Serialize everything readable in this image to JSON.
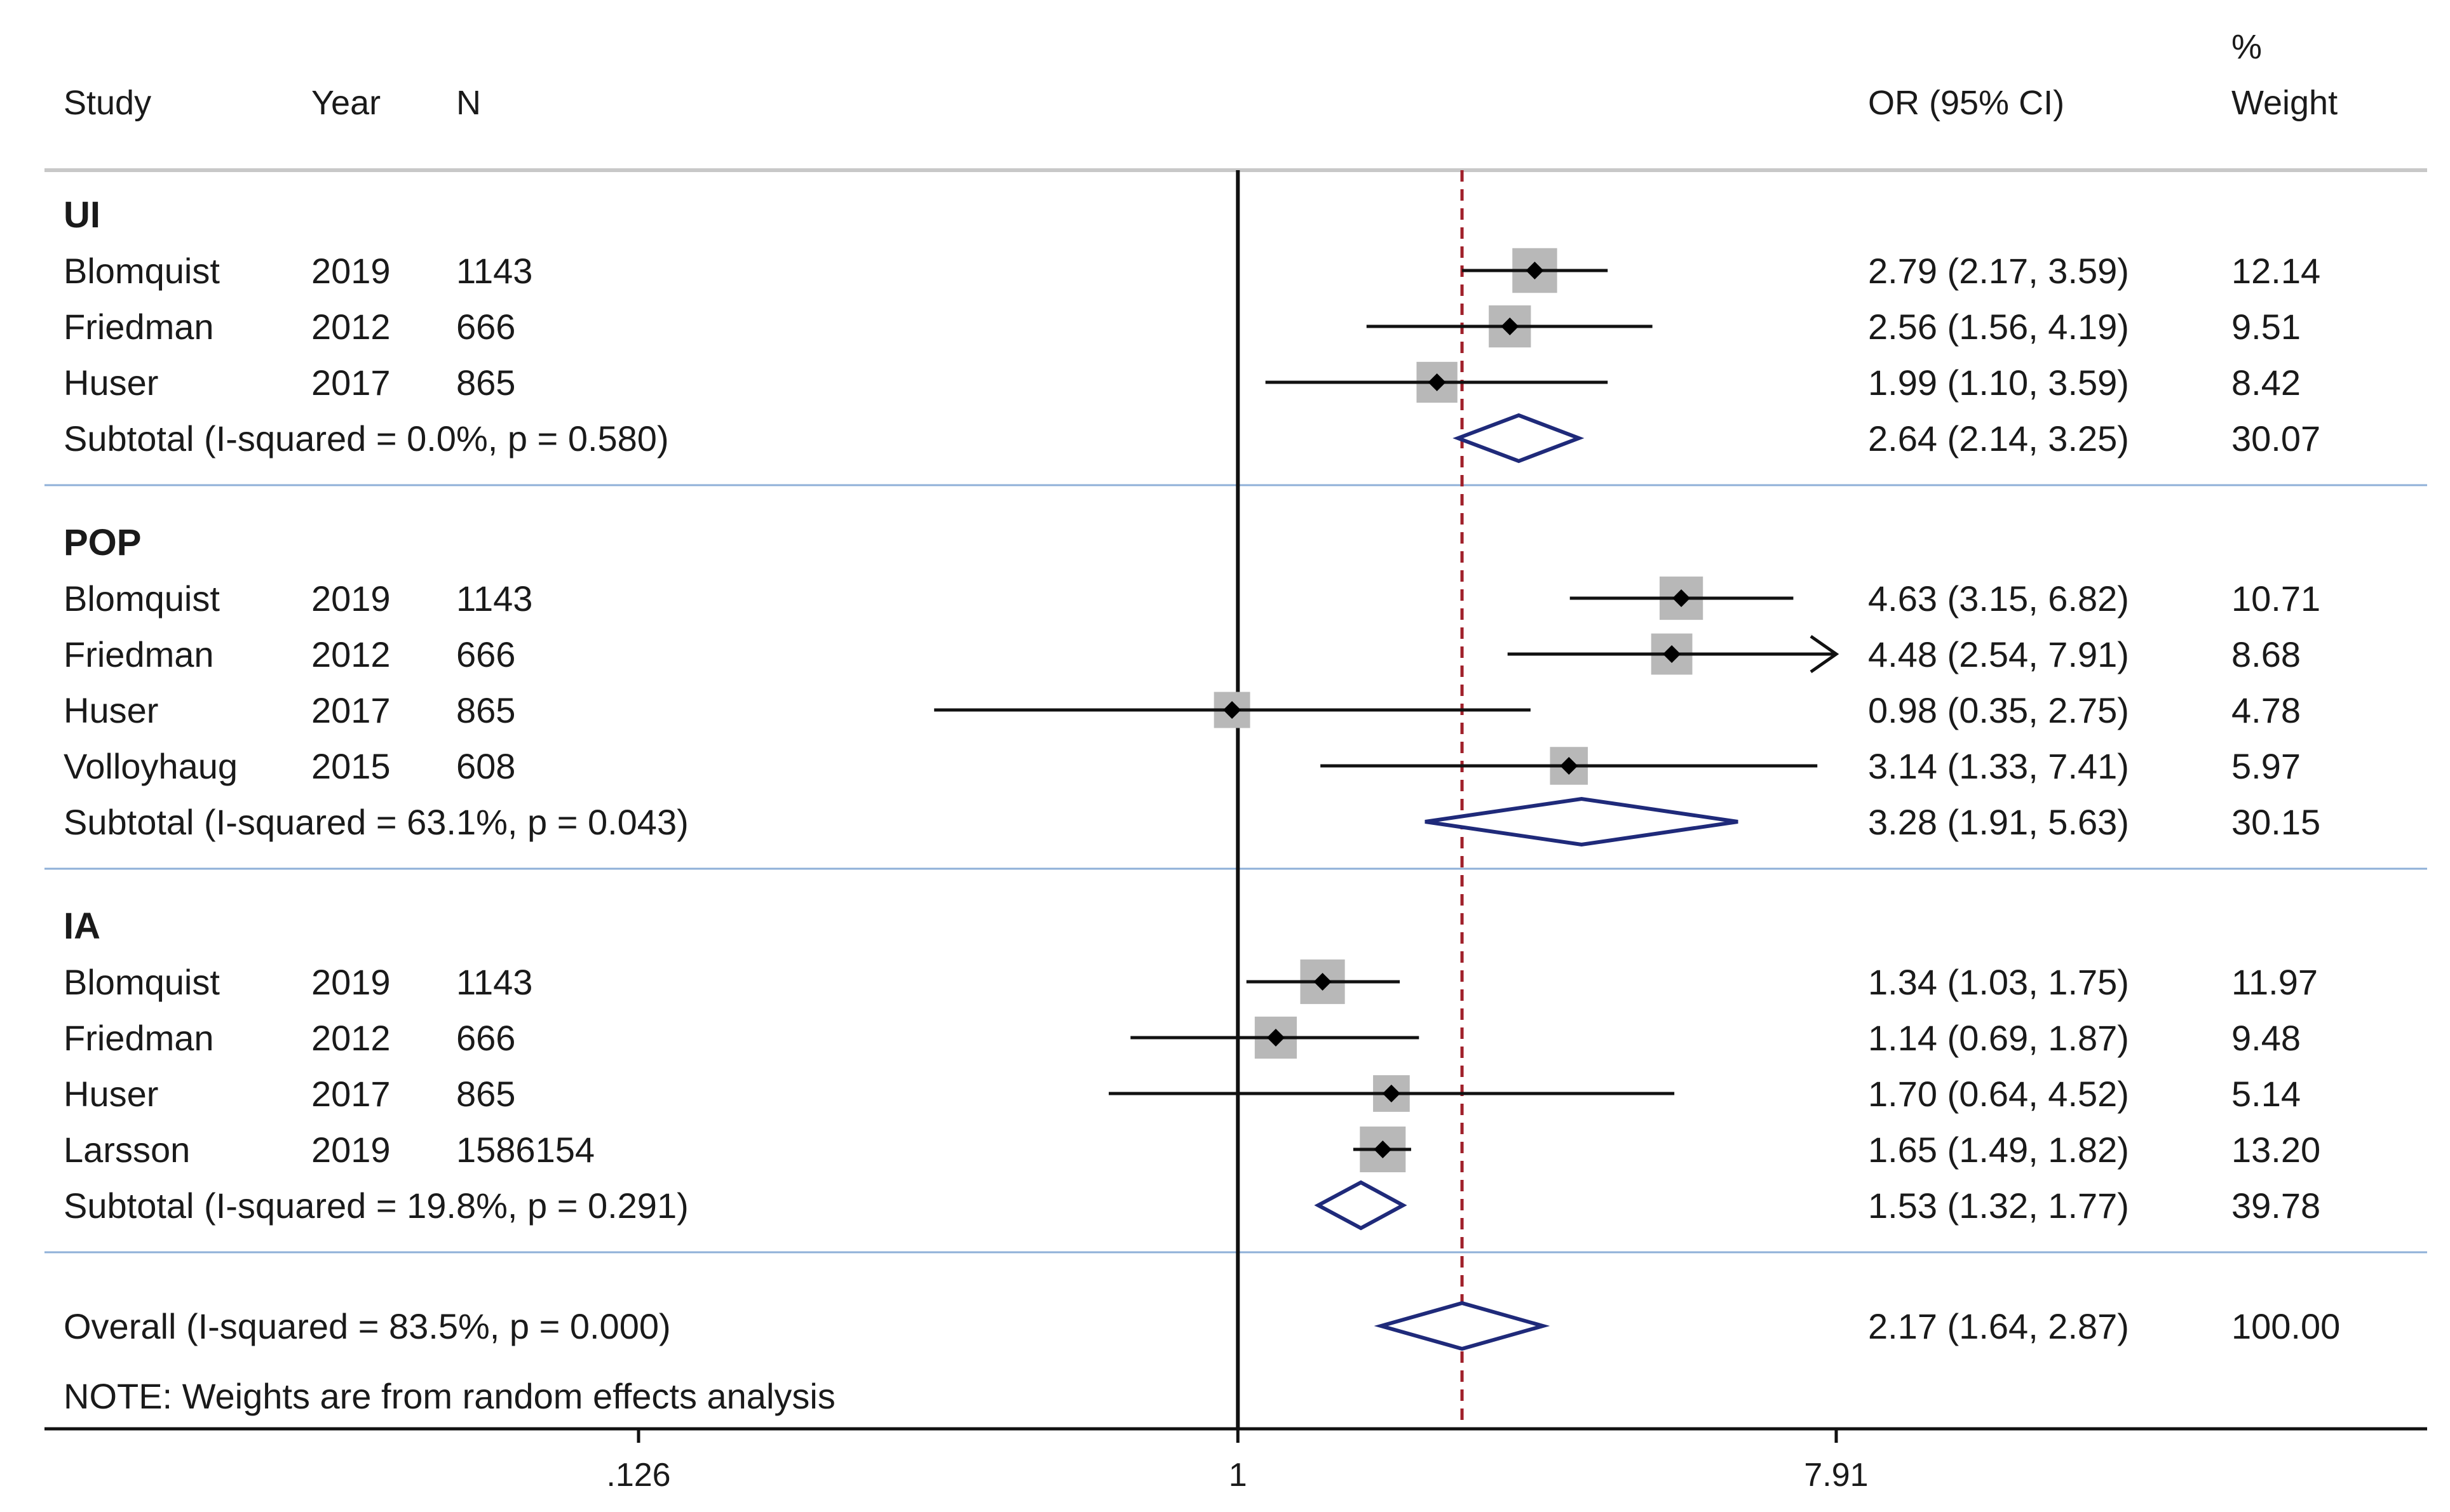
{
  "chart_data": {
    "type": "forest",
    "title": "",
    "xscale": "log",
    "xticks": [
      {
        "value": 0.126,
        "label": ".126"
      },
      {
        "value": 1,
        "label": "1"
      },
      {
        "value": 7.91,
        "label": "7.91"
      }
    ],
    "xlim": [
      0.126,
      7.91
    ],
    "null_line": 1,
    "overall_line": 2.17,
    "headers": {
      "study": "Study",
      "year": "Year",
      "n": "N",
      "or": "OR (95% CI)",
      "weight_top": "%",
      "weight": "Weight"
    },
    "groups": [
      {
        "name": "UI",
        "studies": [
          {
            "study": "Blomquist",
            "year": "2019",
            "n": "1143",
            "or": 2.79,
            "lo": 2.17,
            "hi": 3.59,
            "or_text": "2.79 (2.17, 3.59)",
            "weight": 12.14,
            "weight_text": "12.14"
          },
          {
            "study": "Friedman",
            "year": "2012",
            "n": "666",
            "or": 2.56,
            "lo": 1.56,
            "hi": 4.19,
            "or_text": "2.56 (1.56, 4.19)",
            "weight": 9.51,
            "weight_text": "9.51"
          },
          {
            "study": "Huser",
            "year": "2017",
            "n": "865",
            "or": 1.99,
            "lo": 1.1,
            "hi": 3.59,
            "or_text": "1.99 (1.10, 3.59)",
            "weight": 8.42,
            "weight_text": "8.42"
          }
        ],
        "subtotal": {
          "label": "Subtotal  (I-squared = 0.0%, p = 0.580)",
          "or": 2.64,
          "lo": 2.14,
          "hi": 3.25,
          "or_text": "2.64 (2.14, 3.25)",
          "weight_text": "30.07"
        }
      },
      {
        "name": "POP",
        "studies": [
          {
            "study": "Blomquist",
            "year": "2019",
            "n": "1143",
            "or": 4.63,
            "lo": 3.15,
            "hi": 6.82,
            "or_text": "4.63 (3.15, 6.82)",
            "weight": 10.71,
            "weight_text": "10.71"
          },
          {
            "study": "Friedman",
            "year": "2012",
            "n": "666",
            "or": 4.48,
            "lo": 2.54,
            "hi": 7.91,
            "or_text": "4.48 (2.54, 7.91)",
            "weight": 8.68,
            "weight_text": "8.68",
            "arrow": true
          },
          {
            "study": "Huser",
            "year": "2017",
            "n": "865",
            "or": 0.98,
            "lo": 0.35,
            "hi": 2.75,
            "or_text": "0.98 (0.35, 2.75)",
            "weight": 4.78,
            "weight_text": "4.78"
          },
          {
            "study": "Volloyhaug",
            "year": "2015",
            "n": "608",
            "or": 3.14,
            "lo": 1.33,
            "hi": 7.41,
            "or_text": "3.14 (1.33, 7.41)",
            "weight": 5.97,
            "weight_text": "5.97"
          }
        ],
        "subtotal": {
          "label": "Subtotal  (I-squared = 63.1%, p = 0.043)",
          "or": 3.28,
          "lo": 1.91,
          "hi": 5.63,
          "or_text": "3.28 (1.91, 5.63)",
          "weight_text": "30.15"
        }
      },
      {
        "name": "IA",
        "studies": [
          {
            "study": "Blomquist",
            "year": "2019",
            "n": "1143",
            "or": 1.34,
            "lo": 1.03,
            "hi": 1.75,
            "or_text": "1.34 (1.03, 1.75)",
            "weight": 11.97,
            "weight_text": "11.97"
          },
          {
            "study": "Friedman",
            "year": "2012",
            "n": "666",
            "or": 1.14,
            "lo": 0.69,
            "hi": 1.87,
            "or_text": "1.14 (0.69, 1.87)",
            "weight": 9.48,
            "weight_text": "9.48"
          },
          {
            "study": "Huser",
            "year": "2017",
            "n": "865",
            "or": 1.7,
            "lo": 0.64,
            "hi": 4.52,
            "or_text": "1.70 (0.64, 4.52)",
            "weight": 5.14,
            "weight_text": "5.14"
          },
          {
            "study": "Larsson",
            "year": "2019",
            "n": "1586154",
            "or": 1.65,
            "lo": 1.49,
            "hi": 1.82,
            "or_text": "1.65 (1.49, 1.82)",
            "weight": 13.2,
            "weight_text": "13.20"
          }
        ],
        "subtotal": {
          "label": "Subtotal  (I-squared = 19.8%, p = 0.291)",
          "or": 1.53,
          "lo": 1.32,
          "hi": 1.77,
          "or_text": "1.53 (1.32, 1.77)",
          "weight_text": "39.78"
        }
      }
    ],
    "overall": {
      "label": "Overall  (I-squared = 83.5%, p = 0.000)",
      "or": 2.17,
      "lo": 1.64,
      "hi": 2.87,
      "or_text": "2.17 (1.64, 2.87)",
      "weight_text": "100.00"
    },
    "note": "NOTE: Weights are from random effects analysis",
    "colors": {
      "diamond": "#1f2a7a",
      "overall_line": "#a0202a",
      "separator": "#8fb0d8",
      "box": "#b8b8b8",
      "line": "#111111"
    }
  }
}
